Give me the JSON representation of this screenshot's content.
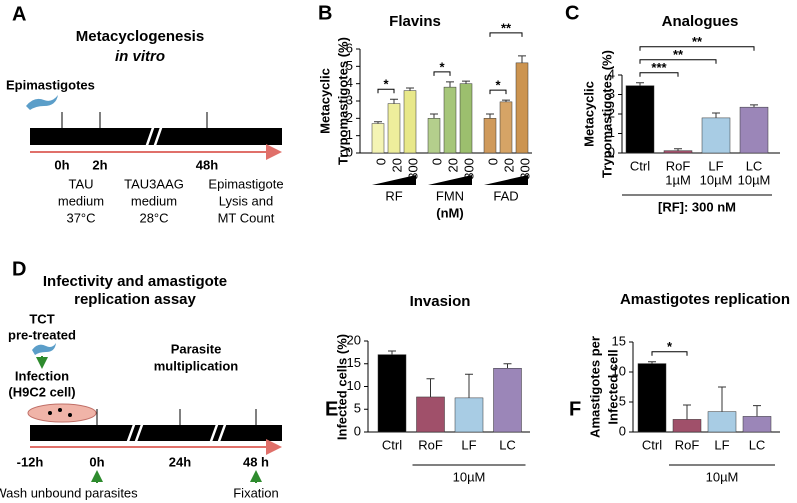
{
  "panel_a": {
    "letter": "A",
    "title": [
      "Metacyclogenesis",
      "in vitro"
    ],
    "start": "Epimastigotes",
    "times": [
      "0h",
      "2h",
      "48h"
    ],
    "steps": [
      [
        "TAU",
        "medium",
        "37°C"
      ],
      [
        "TAU3AAG",
        "medium",
        "28°C"
      ],
      [
        "Epimastigote",
        "Lysis and",
        "MT Count"
      ]
    ]
  },
  "panel_d": {
    "letter": "D",
    "title": [
      "Infectivity and amastigote",
      "replication assay"
    ],
    "pretreat": [
      "TCT",
      "pre-treated"
    ],
    "infection": [
      "Infection",
      "(H9C2 cell)"
    ],
    "multiplication": [
      "Parasite",
      "multiplication"
    ],
    "times": [
      "-12h",
      "0h",
      "24h",
      "48 h"
    ],
    "wash": "Wash unbound parasites",
    "fixation": "Fixation"
  },
  "chart_data": [
    {
      "type": "bar",
      "letter": "B",
      "title": "Flavins",
      "ylabel": [
        "Metacyclic",
        "Trypomastigotes (%)"
      ],
      "categories": [
        "0",
        "20",
        "300",
        "0",
        "20",
        "300",
        "0",
        "20",
        "300"
      ],
      "groups": [
        "RF",
        "FMN",
        "FAD"
      ],
      "group_unit": "(nM)",
      "values": [
        1.7,
        2.85,
        3.6,
        2.0,
        3.8,
        4.0,
        2.0,
        2.95,
        5.2
      ],
      "errors": [
        0.1,
        0.25,
        0.15,
        0.25,
        0.3,
        0.15,
        0.25,
        0.1,
        0.4
      ],
      "colors": [
        "#f4f4b4",
        "#eeee9c",
        "#e8e88a",
        "#b4cf8c",
        "#a6c67a",
        "#9cbf6e",
        "#cf9a5c",
        "#d6a466",
        "#cc9450"
      ],
      "ylim": [
        0,
        6
      ],
      "yticks": [
        0,
        1,
        2,
        3,
        4,
        5,
        6
      ],
      "brackets": [
        {
          "from": 0,
          "to": 1,
          "label": "*"
        },
        {
          "from": 3,
          "to": 4,
          "label": "*"
        },
        {
          "from": 6,
          "to": 7,
          "label": "*"
        },
        {
          "from": 6,
          "to": 8,
          "label": "**"
        }
      ]
    },
    {
      "type": "bar",
      "letter": "C",
      "title": "Analogues",
      "ylabel": [
        "Metacyclic",
        "Trypomastigotes (%)"
      ],
      "categories": [
        "Ctrl",
        "RoF",
        "LF",
        "LC"
      ],
      "doses": [
        null,
        "1µM",
        "10µM",
        "10µM"
      ],
      "values": [
        3.45,
        0.12,
        1.8,
        2.35
      ],
      "errors": [
        0.15,
        0.1,
        0.25,
        0.12
      ],
      "colors": [
        "#000000",
        "#a0506a",
        "#a8cce4",
        "#9b86b8"
      ],
      "ylim": [
        0,
        4
      ],
      "yticks": [
        0,
        1,
        2,
        3,
        4
      ],
      "brackets": [
        {
          "from": 0,
          "to": 1,
          "label": "***"
        },
        {
          "from": 0,
          "to": 2,
          "label": "**"
        },
        {
          "from": 0,
          "to": 3,
          "label": "**"
        }
      ],
      "footer": "[RF]: 300 nM",
      "footer_span": [
        0,
        3
      ]
    },
    {
      "type": "bar",
      "letter": "E",
      "title": "Invasion",
      "ylabel": [
        "Infected cells (%)"
      ],
      "categories": [
        "Ctrl",
        "RoF",
        "LF",
        "LC"
      ],
      "values": [
        17,
        7.7,
        7.5,
        14
      ],
      "errors": [
        0.8,
        4,
        5.2,
        1
      ],
      "colors": [
        "#000000",
        "#a0506a",
        "#a8cce4",
        "#9b86b8"
      ],
      "ylim": [
        0,
        20
      ],
      "yticks": [
        0,
        5,
        10,
        15,
        20
      ],
      "footer": "10µM",
      "footer_span": [
        1,
        3
      ]
    },
    {
      "type": "bar",
      "letter": "F",
      "title": "Amastigotes replication",
      "ylabel": [
        "Amastigotes per",
        "Infected cell"
      ],
      "categories": [
        "Ctrl",
        "RoF",
        "LF",
        "LC"
      ],
      "values": [
        11.4,
        2.1,
        3.4,
        2.6
      ],
      "errors": [
        0.3,
        2.4,
        4.1,
        1.8
      ],
      "colors": [
        "#000000",
        "#a0506a",
        "#a8cce4",
        "#9b86b8"
      ],
      "ylim": [
        0,
        15
      ],
      "yticks": [
        0,
        5,
        10,
        15
      ],
      "brackets": [
        {
          "from": 0,
          "to": 1,
          "label": "*"
        }
      ],
      "footer": "10µM",
      "footer_span": [
        1,
        3
      ]
    }
  ]
}
